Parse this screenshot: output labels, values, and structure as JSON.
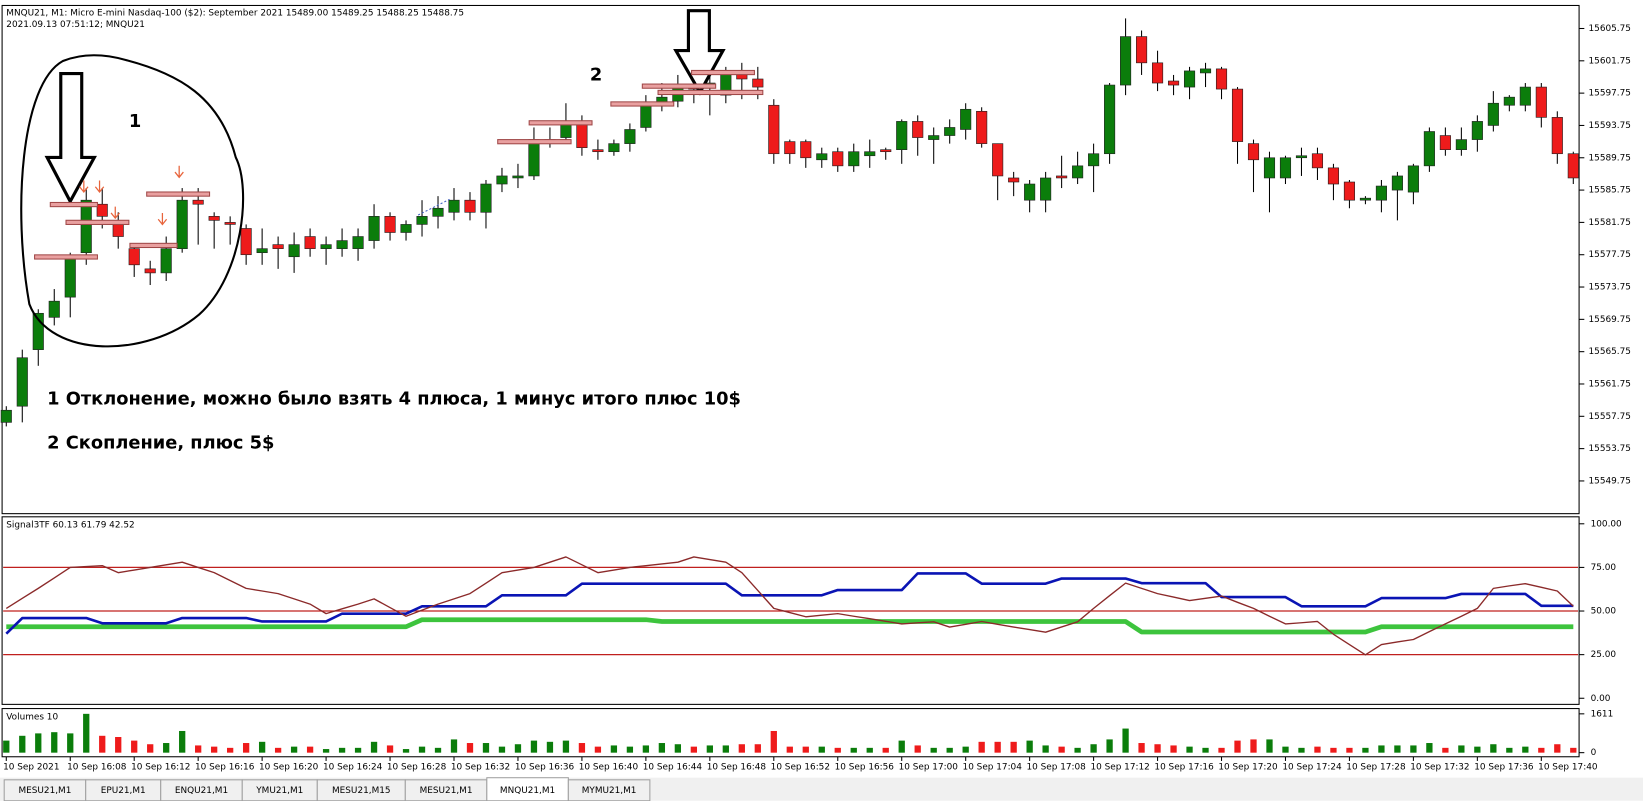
{
  "header": {
    "symbol_line": "MNQU21, M1:  Micro E-mini Nasdaq-100 ($2): September 2021  15489.00 15489.25 15488.25 15488.75",
    "time_line": "2021.09.13 07:51:12; MNQU21"
  },
  "chart_data": [
    {
      "type": "candlestick",
      "categories": [
        "10 Sep 2021",
        null,
        null,
        null,
        "10 Sep 16:08",
        null,
        null,
        null,
        "10 Sep 16:12",
        null,
        null,
        null,
        "10 Sep 16:16",
        null,
        null,
        null,
        "10 Sep 16:20",
        null,
        null,
        null,
        "10 Sep 16:24",
        null,
        null,
        null,
        "10 Sep 16:28",
        null,
        null,
        null,
        "10 Sep 16:32",
        null,
        null,
        null,
        "10 Sep 16:36",
        null,
        null,
        null,
        "10 Sep 16:40",
        null,
        null,
        null,
        "10 Sep 16:44",
        null,
        null,
        null,
        "10 Sep 16:48",
        null,
        null,
        null,
        "10 Sep 16:52",
        null,
        null,
        null,
        "10 Sep 16:56",
        null,
        null,
        null,
        "10 Sep 17:00",
        null,
        null,
        null,
        "10 Sep 17:04",
        null,
        null,
        null,
        "10 Sep 17:08",
        null,
        null,
        null,
        "10 Sep 17:12",
        null,
        null,
        null,
        "10 Sep 17:16",
        null,
        null,
        null,
        "10 Sep 17:20",
        null,
        null,
        null,
        "10 Sep 17:24",
        null,
        null,
        null,
        "10 Sep 17:28",
        null,
        null,
        null,
        "10 Sep 17:32",
        null,
        null,
        null,
        "10 Sep 17:36",
        null,
        null,
        null,
        "10 Sep 17:40",
        null,
        null
      ],
      "open": [
        15557,
        15559,
        15566,
        15570,
        15572.5,
        15578,
        15584,
        15582,
        15578.5,
        15576,
        15575.5,
        15578.5,
        15584.5,
        15582.5,
        15581.75,
        15581,
        15578,
        15579,
        15577.5,
        15580,
        15578.5,
        15578.5,
        15578.5,
        15579.5,
        15582.5,
        15580.5,
        15581.5,
        15582.5,
        15583,
        15584.5,
        15583,
        15586.5,
        15587.25,
        15587.5,
        15591.5,
        15592.25,
        15594.25,
        15590.75,
        15590.5,
        15591.5,
        15593.5,
        15596.5,
        15596.75,
        15598.75,
        15598.5,
        15597.5,
        15600.5,
        15599.5,
        15596.25,
        15591.75,
        15591.75,
        15589.5,
        15590.5,
        15588.75,
        15590,
        15590.75,
        15590.75,
        15594.25,
        15592,
        15592.5,
        15593.25,
        15595.5,
        15591.5,
        15587.25,
        15584.5,
        15584.5,
        15587.5,
        15587.25,
        15588.75,
        15590.25,
        15598.75,
        15604.75,
        15601.5,
        15599.25,
        15598.5,
        15600.25,
        15600.75,
        15598.25,
        15591.5,
        15587.25,
        15587.25,
        15589.75,
        15590.25,
        15588.5,
        15586.75,
        15584.5,
        15584.5,
        15585.75,
        15585.5,
        15588.75,
        15592.5,
        15590.75,
        15592,
        15593.75,
        15596.25,
        15596.25,
        15598.5,
        15594.75,
        15590.25
      ],
      "high": [
        15559,
        15566,
        15571,
        15573.5,
        15578,
        15586,
        15586,
        15583,
        15579,
        15577,
        15580,
        15586,
        15586,
        15583,
        15582.5,
        15581.5,
        15581,
        15580,
        15580.5,
        15581,
        15580,
        15581,
        15581,
        15584,
        15583,
        15582,
        15584.5,
        15585,
        15586,
        15585.5,
        15587,
        15588.5,
        15589,
        15593.5,
        15593.5,
        15596.5,
        15595,
        15592,
        15592,
        15594,
        15597.5,
        15599,
        15600,
        15600,
        15600.5,
        15601,
        15601.5,
        15601,
        15597,
        15592,
        15592,
        15591,
        15591,
        15591.5,
        15592,
        15591,
        15594.5,
        15595,
        15593.5,
        15594.5,
        15596.5,
        15596,
        15591.5,
        15588,
        15587,
        15588,
        15590,
        15590.5,
        15591.5,
        15599,
        15607,
        15605.5,
        15603,
        15600,
        15601,
        15601.5,
        15601,
        15598.5,
        15592,
        15590.5,
        15590,
        15591,
        15591,
        15589,
        15587,
        15585,
        15587,
        15588,
        15589,
        15593.5,
        15593.5,
        15593.5,
        15595,
        15598,
        15597.5,
        15599,
        15599,
        15595.5,
        15590.5
      ],
      "low": [
        15556.5,
        15557,
        15564,
        15569,
        15570,
        15576.5,
        15581,
        15578.5,
        15575,
        15574,
        15574.5,
        15578,
        15579,
        15578.5,
        15579,
        15576.5,
        15576.5,
        15576,
        15575.5,
        15577.5,
        15576.5,
        15577.5,
        15577,
        15578.5,
        15579.5,
        15579.5,
        15580,
        15581,
        15582,
        15582,
        15581,
        15585.5,
        15586,
        15587,
        15591,
        15591.5,
        15590,
        15589.5,
        15590,
        15590.5,
        15593,
        15595.5,
        15596,
        15596.5,
        15595,
        15596.5,
        15597,
        15597,
        15589,
        15589,
        15588.5,
        15588.5,
        15588,
        15588,
        15588.5,
        15589.5,
        15589,
        15590,
        15589,
        15591.5,
        15592,
        15591,
        15584.5,
        15585,
        15583,
        15583,
        15586,
        15586.5,
        15585.5,
        15589,
        15597.5,
        15600,
        15598,
        15597.5,
        15597,
        15598.5,
        15597,
        15589,
        15585.5,
        15583,
        15586.5,
        15587.5,
        15587,
        15584.5,
        15583.5,
        15584,
        15583,
        15582,
        15584,
        15588,
        15590,
        15590,
        15590.5,
        15593,
        15595.5,
        15595.5,
        15593.5,
        15589,
        15586.5
      ],
      "close": [
        15558.5,
        15565,
        15570.5,
        15572,
        15577.5,
        15584.5,
        15582.5,
        15580,
        15576.5,
        15575.5,
        15578.5,
        15584.5,
        15584,
        15582,
        15581.5,
        15577.75,
        15578.5,
        15578.5,
        15579,
        15578.5,
        15579,
        15579.5,
        15580,
        15582.5,
        15580.5,
        15581.5,
        15582.5,
        15583.5,
        15584.5,
        15583,
        15586.5,
        15587.5,
        15587.5,
        15592,
        15592,
        15594.25,
        15591,
        15590.5,
        15591.5,
        15593.25,
        15596.5,
        15597.25,
        15598.75,
        15598.25,
        15599,
        15600.5,
        15599.5,
        15598.5,
        15590.25,
        15590.25,
        15589.75,
        15590.25,
        15588.75,
        15590.5,
        15590.5,
        15590.5,
        15594.25,
        15592.25,
        15592.5,
        15593.5,
        15595.75,
        15591.5,
        15587.5,
        15586.75,
        15586.5,
        15587.25,
        15587.25,
        15588.75,
        15590.25,
        15598.75,
        15604.75,
        15601.5,
        15599,
        15598.75,
        15600.5,
        15600.75,
        15598.25,
        15591.75,
        15589.5,
        15589.75,
        15589.75,
        15590,
        15588.5,
        15586.5,
        15584.5,
        15584.75,
        15586.25,
        15587.5,
        15588.75,
        15593,
        15590.75,
        15592,
        15594.25,
        15596.5,
        15597.25,
        15598.5,
        15594.75,
        15590.25,
        15587.25
      ],
      "up_color": "#0b7d0b",
      "down_color": "#ee1b1b",
      "ylim": [
        15545.7,
        15608.6
      ],
      "yticks": [
        15605.75,
        15601.75,
        15597.75,
        15593.75,
        15589.75,
        15585.75,
        15581.75,
        15577.75,
        15573.75,
        15569.75,
        15565.75,
        15561.75,
        15557.75,
        15553.75,
        15549.75
      ],
      "annotations": [
        "1",
        "2",
        "1 Отклонение, можно было взять 4 плюса, 1 минус итого плюс 10$",
        "2 Скопление, плюс 5$"
      ]
    },
    {
      "type": "line",
      "title": "Signal3TF 60.13 61.79 42.52",
      "series": [
        {
          "color": "#8b2a2a",
          "values": [
            51.5,
            57.3,
            63,
            69,
            75,
            75.5,
            76,
            72,
            73.5,
            75,
            76.5,
            78,
            75,
            72,
            67.5,
            63,
            61.5,
            60,
            57,
            54,
            48.5,
            51.3,
            54,
            57,
            52,
            47,
            50.5,
            54,
            57,
            60,
            66,
            72,
            73.5,
            75,
            78,
            81,
            76.5,
            72,
            73.5,
            75,
            76,
            77,
            78,
            81,
            79.5,
            78,
            72,
            61.8,
            51.5,
            49.1,
            46.7,
            47.6,
            48.5,
            47,
            45.6,
            44.1,
            42.6,
            43.2,
            43.8,
            40.8,
            42.4,
            44,
            42.4,
            40.8,
            39.4,
            37.9,
            40.9,
            43.8,
            51.5,
            58.8,
            66,
            63,
            60,
            58,
            56,
            57.3,
            58.6,
            55,
            51.5,
            47,
            42.6,
            43.3,
            44,
            36.7,
            30.8,
            24.9,
            30.8,
            32.3,
            33.7,
            38.2,
            42.6,
            47,
            51.5,
            63,
            64.4,
            65.7,
            63.6,
            61.5,
            52.7
          ]
        },
        {
          "color": "#0a14b4",
          "values": [
            37,
            46,
            46,
            46,
            46,
            46,
            43,
            43,
            43,
            43,
            43,
            46,
            46,
            46,
            46,
            46,
            44,
            44,
            44,
            44,
            44,
            48.5,
            48.5,
            48.5,
            48.5,
            48.5,
            52.7,
            52.7,
            52.7,
            52.7,
            52.7,
            59,
            59,
            59,
            59,
            59,
            65.7,
            65.7,
            65.7,
            65.7,
            65.7,
            65.7,
            65.7,
            65.7,
            65.7,
            65.7,
            59,
            59,
            59,
            59,
            59,
            59,
            62,
            62,
            62,
            62,
            62,
            71.6,
            71.6,
            71.6,
            71.6,
            65.7,
            65.7,
            65.7,
            65.7,
            65.7,
            68.6,
            68.6,
            68.6,
            68.6,
            68.6,
            66,
            66,
            66,
            66,
            66,
            58,
            58,
            58,
            58,
            58,
            52.7,
            52.7,
            52.7,
            52.7,
            52.7,
            57.4,
            57.4,
            57.4,
            57.4,
            57.4,
            59.8,
            59.8,
            59.8,
            59.8,
            59.8,
            53,
            53,
            53
          ]
        },
        {
          "color": "#3dc43d",
          "values": [
            41,
            41,
            41,
            41,
            41,
            41,
            41,
            41,
            41,
            41,
            41,
            41,
            41,
            41,
            41,
            41,
            41,
            41,
            41,
            41,
            41,
            41,
            41,
            41,
            41,
            41,
            45,
            45,
            45,
            45,
            45,
            45,
            45,
            45,
            45,
            45,
            45,
            45,
            45,
            45,
            45,
            44,
            44,
            44,
            44,
            44,
            44,
            44,
            44,
            44,
            44,
            44,
            44,
            44,
            44,
            44,
            44,
            44,
            44,
            44,
            44,
            44,
            44,
            44,
            44,
            44,
            44,
            44,
            44,
            44,
            44,
            38,
            38,
            38,
            38,
            38,
            38,
            38,
            38,
            38,
            38,
            38,
            38,
            38,
            38,
            38,
            41,
            41,
            41,
            41,
            41,
            41,
            41,
            41,
            41,
            41,
            41,
            41,
            41
          ]
        }
      ],
      "levels": [
        75,
        50,
        25
      ],
      "levels_color": "#c0201e",
      "ylim": [
        -0.5,
        101
      ],
      "yticks": [
        {
          "value": 100,
          "label": "100.00"
        },
        {
          "value": 75,
          "label": "75.00"
        },
        {
          "value": 50,
          "label": "50.00"
        },
        {
          "value": 25,
          "label": "25.00"
        },
        {
          "value": 0,
          "label": "0.00"
        }
      ]
    },
    {
      "type": "bar",
      "title": "Volumes 10",
      "values": [
        500,
        700,
        800,
        850,
        800,
        1611,
        700,
        650,
        500,
        350,
        400,
        900,
        300,
        250,
        200,
        400,
        450,
        200,
        250,
        250,
        150,
        200,
        200,
        450,
        300,
        150,
        250,
        200,
        550,
        400,
        400,
        250,
        350,
        500,
        450,
        500,
        400,
        250,
        300,
        250,
        300,
        400,
        350,
        250,
        300,
        300,
        350,
        350,
        900,
        250,
        250,
        250,
        200,
        200,
        200,
        200,
        500,
        300,
        200,
        200,
        250,
        450,
        450,
        450,
        500,
        300,
        250,
        200,
        350,
        550,
        1000,
        400,
        350,
        300,
        250,
        200,
        200,
        500,
        550,
        550,
        250,
        200,
        250,
        200,
        200,
        200,
        300,
        300,
        300,
        400,
        200,
        300,
        250,
        350,
        200,
        250,
        200,
        350,
        200
      ],
      "ylim": [
        -170,
        1830
      ],
      "yticks": [
        1611,
        0
      ]
    }
  ],
  "tabs": [
    "MESU21,M1",
    "EPU21,M1",
    "ENQU21,M1",
    "YMU21,M1",
    "MESU21,M15",
    "MESU21,M1",
    "MNQU21,M1",
    "MYMU21,M1"
  ],
  "active_tab": 6
}
